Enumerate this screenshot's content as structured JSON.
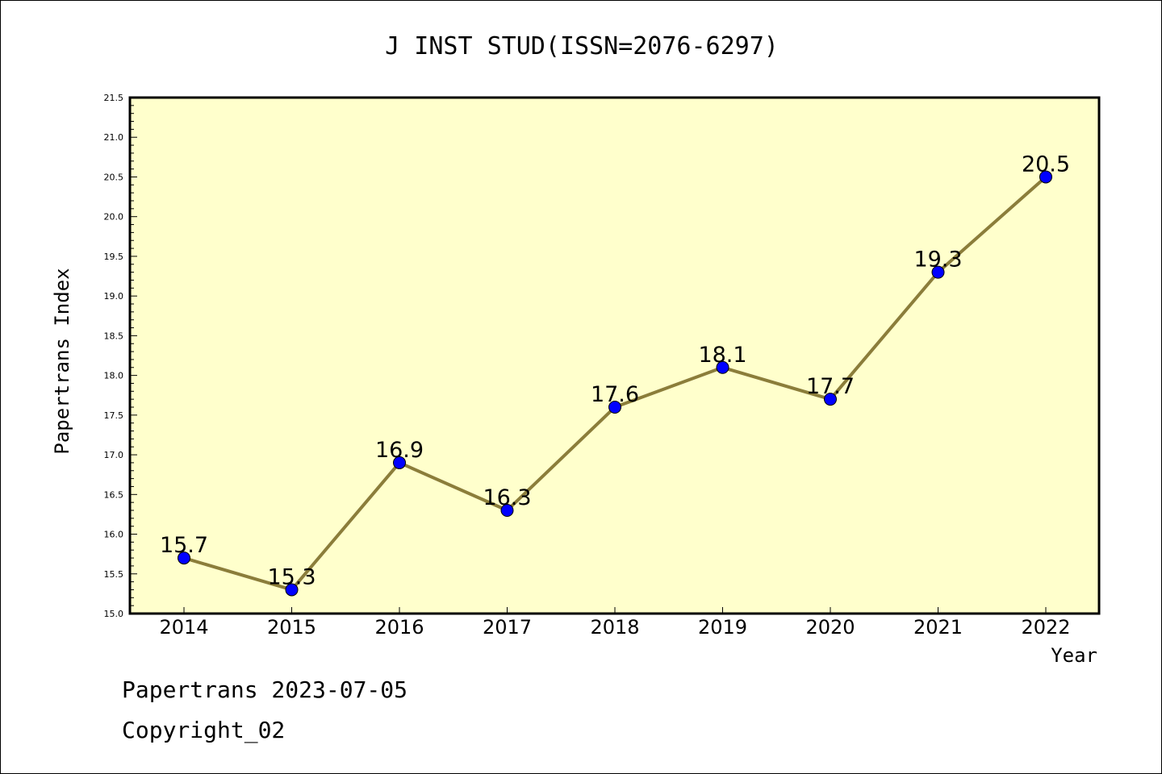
{
  "chart_data": {
    "type": "line",
    "title": "J INST STUD(ISSN=2076-6297)",
    "xlabel": "Year",
    "ylabel": "Papertrans Index",
    "categories": [
      "2014",
      "2015",
      "2016",
      "2017",
      "2018",
      "2019",
      "2020",
      "2021",
      "2022"
    ],
    "values": [
      15.7,
      15.3,
      16.9,
      16.3,
      17.6,
      18.1,
      17.7,
      19.3,
      20.5
    ],
    "data_labels": [
      "15.7",
      "15.3",
      "16.9",
      "16.3",
      "17.6",
      "18.1",
      "17.7",
      "19.3",
      "20.5"
    ],
    "ylim": [
      15.0,
      21.5
    ],
    "yticks": [
      "15.0",
      "15.5",
      "16.0",
      "16.5",
      "17.0",
      "17.5",
      "18.0",
      "18.5",
      "19.0",
      "19.5",
      "20.0",
      "20.5",
      "21.0",
      "21.5"
    ],
    "grid": false,
    "colors": {
      "plot_background": "#ffffcc",
      "line": "#8b7d3a",
      "marker": "#0000ff"
    }
  },
  "footer": {
    "line1": "Papertrans 2023-07-05",
    "line2": "Copyright_02"
  }
}
